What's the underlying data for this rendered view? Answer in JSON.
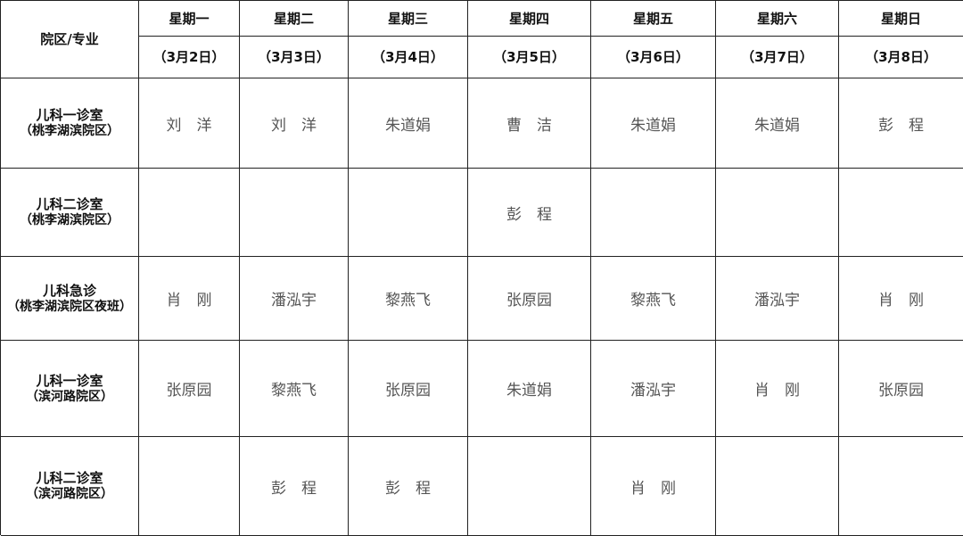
{
  "corner": "院区/专业",
  "days": [
    "星期一",
    "星期二",
    "星期三",
    "星期四",
    "星期五",
    "星期六",
    "星期日"
  ],
  "dates": [
    "（3月2日）",
    "（3月3日）",
    "（3月4日）",
    "（3月5日）",
    "（3月6日）",
    "（3月7日）",
    "（3月8日）"
  ],
  "rows": [
    {
      "dept": "儿科一诊室",
      "campus": "（桃李湖滨院区）",
      "cells": [
        "刘　洋",
        "刘　洋",
        "朱道娟",
        "曹　洁",
        "朱道娟",
        "朱道娟",
        "彭　程"
      ]
    },
    {
      "dept": "儿科二诊室",
      "campus": "（桃李湖滨院区）",
      "cells": [
        "",
        "",
        "",
        "彭　程",
        "",
        "",
        ""
      ]
    },
    {
      "dept": "儿科急诊",
      "campus": "（桃李湖滨院区夜班）",
      "cells": [
        "肖　刚",
        "潘泓宇",
        "黎燕飞",
        "张原园",
        "黎燕飞",
        "潘泓宇",
        "肖　刚"
      ]
    },
    {
      "dept": "儿科一诊室",
      "campus": "（滨河路院区）",
      "cells": [
        "张原园",
        "黎燕飞",
        "张原园",
        "朱道娟",
        "潘泓宇",
        "肖　刚",
        "张原园"
      ]
    },
    {
      "dept": "儿科二诊室",
      "campus": "（滨河路院区）",
      "cells": [
        "",
        "彭　程",
        "彭　程",
        "",
        "肖　刚",
        "",
        ""
      ]
    }
  ]
}
